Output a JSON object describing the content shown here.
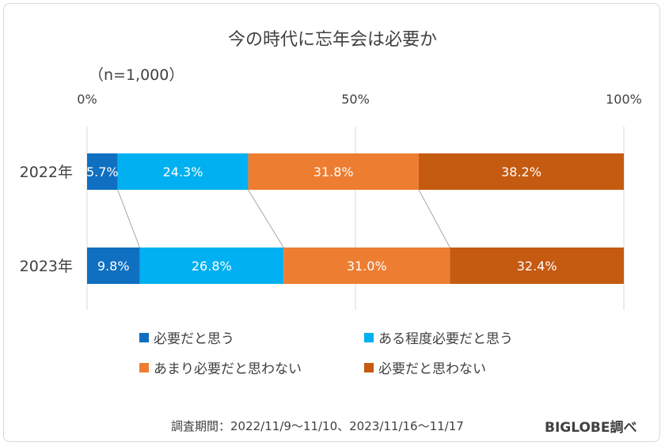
{
  "title": "今の時代に忘年会は必要か",
  "note": "（n=1,000）",
  "footer": "調査期間：2022/11/9～11/10、2023/11/16～11/17",
  "brand": "BIGLOBE調べ",
  "colors": [
    "#0f6fc0",
    "#00b0f0",
    "#ed7d31",
    "#c55a11"
  ],
  "chart_data": {
    "type": "bar",
    "orientation": "horizontal",
    "stacked": true,
    "categories": [
      "2022年",
      "2023年"
    ],
    "x_ticks": [
      "0%",
      "50%",
      "100%"
    ],
    "xlim": [
      0,
      100
    ],
    "series": [
      {
        "name": "必要だと思う",
        "values": [
          5.7,
          9.8
        ],
        "labels": [
          "5.7%",
          "9.8%"
        ]
      },
      {
        "name": "ある程度必要だと思う",
        "values": [
          24.3,
          26.8
        ],
        "labels": [
          "24.3%",
          "26.8%"
        ]
      },
      {
        "name": "あまり必要だと思わない",
        "values": [
          31.8,
          31.0
        ],
        "labels": [
          "31.8%",
          "31.0%"
        ]
      },
      {
        "name": "必要だと思わない",
        "values": [
          38.2,
          32.4
        ],
        "labels": [
          "38.2%",
          "32.4%"
        ]
      }
    ],
    "legend_position": "bottom"
  }
}
